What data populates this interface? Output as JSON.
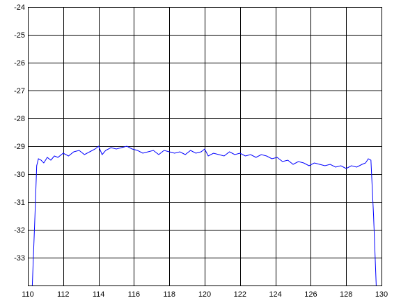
{
  "chart_data": {
    "type": "line",
    "title": "",
    "xlabel": "",
    "ylabel": "",
    "xlim": [
      110,
      130
    ],
    "ylim": [
      -34,
      -24
    ],
    "grid": true,
    "x_ticks": [
      110,
      112,
      114,
      116,
      118,
      120,
      122,
      124,
      126,
      128,
      130
    ],
    "y_ticks": [
      -24,
      -25,
      -26,
      -27,
      -28,
      -29,
      -30,
      -31,
      -32,
      -33
    ],
    "colors": {
      "line": "#0000ff",
      "axes": "#000000",
      "background": "#ffffff"
    },
    "series": [
      {
        "x": [
          110.25,
          110.4,
          110.5,
          110.6,
          110.75,
          110.9,
          111.1,
          111.3,
          111.5,
          111.7,
          112.0,
          112.3,
          112.6,
          112.9,
          113.2,
          113.5,
          113.8,
          114.0,
          114.2,
          114.4,
          114.7,
          115.0,
          115.3,
          115.6,
          115.9,
          116.2,
          116.5,
          116.8,
          117.1,
          117.4,
          117.7,
          118.0,
          118.3,
          118.6,
          118.9,
          119.2,
          119.5,
          119.8,
          120.0,
          120.2,
          120.5,
          120.8,
          121.1,
          121.4,
          121.7,
          122.0,
          122.3,
          122.6,
          122.9,
          123.2,
          123.5,
          123.8,
          124.1,
          124.4,
          124.7,
          125.0,
          125.3,
          125.6,
          125.9,
          126.2,
          126.5,
          126.8,
          127.1,
          127.4,
          127.7,
          128.0,
          128.3,
          128.6,
          128.9,
          129.1,
          129.25,
          129.4,
          129.55,
          129.7
        ],
        "y": [
          -34,
          -31.5,
          -29.7,
          -29.45,
          -29.5,
          -29.6,
          -29.4,
          -29.5,
          -29.35,
          -29.4,
          -29.25,
          -29.35,
          -29.2,
          -29.15,
          -29.3,
          -29.2,
          -29.1,
          -29.0,
          -29.3,
          -29.15,
          -29.05,
          -29.1,
          -29.05,
          -29.0,
          -29.1,
          -29.15,
          -29.25,
          -29.2,
          -29.15,
          -29.3,
          -29.15,
          -29.2,
          -29.25,
          -29.2,
          -29.3,
          -29.15,
          -29.25,
          -29.2,
          -29.1,
          -29.35,
          -29.25,
          -29.3,
          -29.35,
          -29.2,
          -29.3,
          -29.25,
          -29.35,
          -29.3,
          -29.4,
          -29.3,
          -29.35,
          -29.45,
          -29.4,
          -29.55,
          -29.5,
          -29.65,
          -29.55,
          -29.6,
          -29.7,
          -29.6,
          -29.65,
          -29.7,
          -29.65,
          -29.75,
          -29.7,
          -29.8,
          -29.7,
          -29.75,
          -29.65,
          -29.6,
          -29.45,
          -29.5,
          -31.5,
          -34
        ]
      }
    ]
  }
}
